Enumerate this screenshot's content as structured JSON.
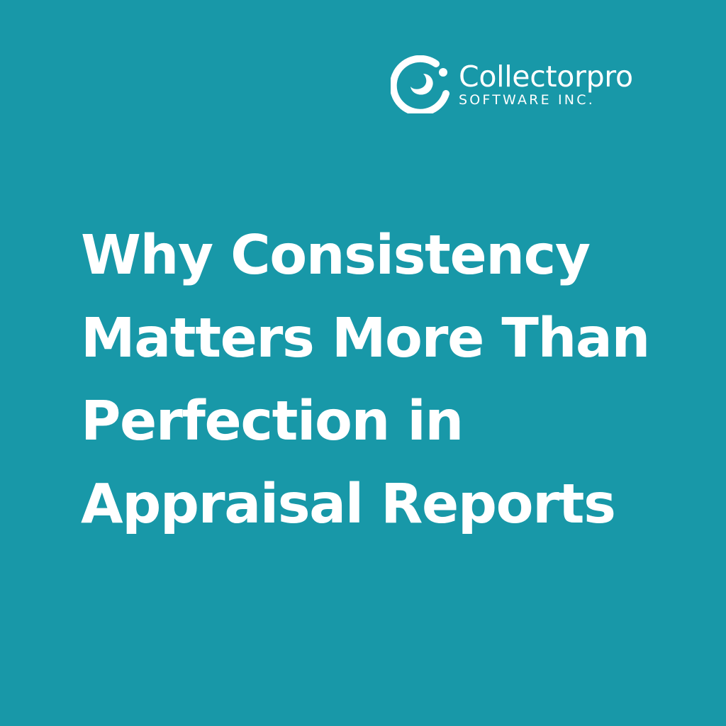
{
  "brand": {
    "name": "Collectorpro",
    "tagline": "SOFTWARE INC.",
    "logo_icon": "swirl-c-logo-icon"
  },
  "headline": {
    "lines": [
      "Why Consistency",
      "Matters More Than",
      "Perfection in",
      "Appraisal Reports"
    ]
  },
  "colors": {
    "background": "#1898a8",
    "text": "#ffffff"
  }
}
